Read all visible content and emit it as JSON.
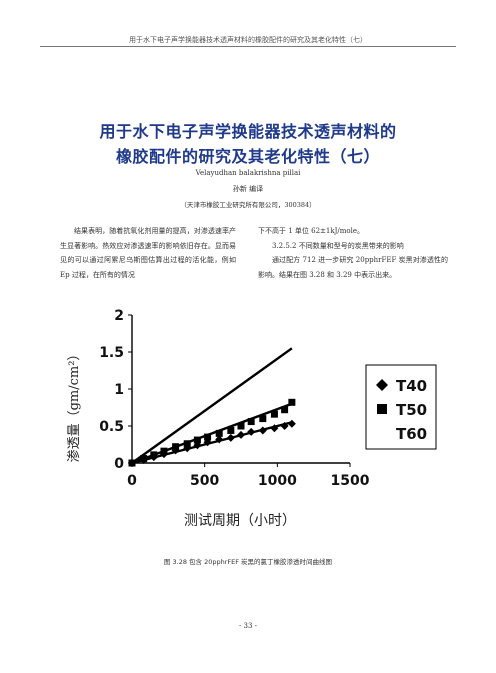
{
  "running_head": "用于水下电子声学换能器技术透声材料的橡胶配件的研究及其老化特性（七）",
  "title_line1": "用于水下电子声学换能器技术透声材料的",
  "title_line2": "橡胶配件的研究及其老化特性（七）",
  "author_en": "Velayudhan balakrishna pillai",
  "translator": "孙新  编译",
  "affiliation": "（天津市橡胶工业研究所有限公司，300384）",
  "body_left": "结果表明，随着抗氧化剂用量的提高，对渗透速率产生显著影响。热效应对渗透速率的影响依旧存在。显而易见的可以通过阿累尼乌斯图估算出过程的活化能，例如 Ep 过程，在所有的情况",
  "body_right": [
    "下不高于 1 单位 62±1kJ/mole。",
    "3.2.5.2 不同数量和型号的炭黑带来的影响",
    "通过配方 712 进一步研究 20pphrFEF 炭黑对渗透性的影响。结果在图 3.28 和 3.29 中表示出来。"
  ],
  "caption": "图 3.28 包含 20pphrFEF 炭黑的氯丁橡胶渗透时间曲线图",
  "page_number": "- 33 -",
  "chart_data": {
    "type": "scatter",
    "xlabel": "测试周期（小时）",
    "ylabel": "渗透量（gm/cm²）",
    "xlim": [
      0,
      1500
    ],
    "ylim": [
      0,
      2
    ],
    "x_ticks": [
      "0",
      "500",
      "1000",
      "1500"
    ],
    "y_ticks": [
      "0",
      "0.5",
      "1",
      "1.5",
      "2"
    ],
    "legend_position": "right",
    "series": [
      {
        "name": "T40",
        "marker": "diamond",
        "points": [
          [
            0,
            0.0
          ],
          [
            80,
            0.04
          ],
          [
            150,
            0.08
          ],
          [
            220,
            0.12
          ],
          [
            300,
            0.17
          ],
          [
            380,
            0.2
          ],
          [
            450,
            0.24
          ],
          [
            520,
            0.28
          ],
          [
            600,
            0.32
          ],
          [
            680,
            0.34
          ],
          [
            750,
            0.38
          ],
          [
            820,
            0.42
          ],
          [
            900,
            0.44
          ],
          [
            980,
            0.47
          ],
          [
            1050,
            0.5
          ],
          [
            1100,
            0.53
          ]
        ],
        "fit": [
          [
            0,
            0.0
          ],
          [
            1100,
            0.55
          ]
        ]
      },
      {
        "name": "T50",
        "marker": "square",
        "points": [
          [
            0,
            0.0
          ],
          [
            80,
            0.06
          ],
          [
            150,
            0.11
          ],
          [
            220,
            0.16
          ],
          [
            300,
            0.22
          ],
          [
            380,
            0.26
          ],
          [
            450,
            0.31
          ],
          [
            520,
            0.35
          ],
          [
            600,
            0.4
          ],
          [
            680,
            0.44
          ],
          [
            750,
            0.5
          ],
          [
            820,
            0.56
          ],
          [
            900,
            0.6
          ],
          [
            980,
            0.66
          ],
          [
            1050,
            0.72
          ],
          [
            1100,
            0.82
          ]
        ],
        "fit": [
          [
            0,
            0.0
          ],
          [
            1100,
            0.8
          ]
        ]
      },
      {
        "name": "T60",
        "marker": "none",
        "points": [],
        "fit": [
          [
            0,
            0.0
          ],
          [
            1100,
            1.55
          ]
        ]
      }
    ]
  }
}
